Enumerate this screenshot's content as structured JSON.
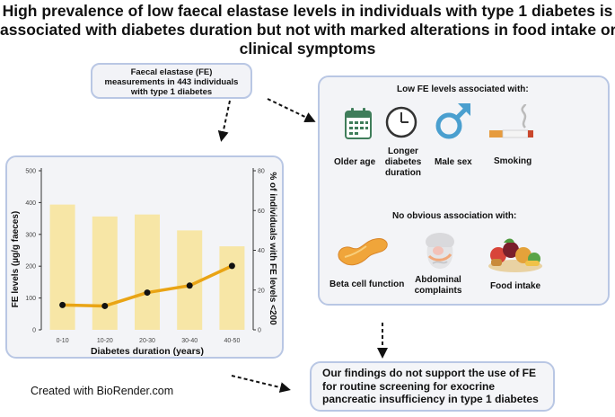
{
  "title": {
    "line1": "High prevalence of low faecal elastase levels in individuals with type 1 diabetes is",
    "line2": "associated with diabetes duration but not with marked alterations in food intake or",
    "line3": "clinical symptoms"
  },
  "fe_box": {
    "line1": "Faecal elastase (FE)",
    "line2": "measurements in 443 individuals",
    "line3": "with type 1 diabetes"
  },
  "assoc": {
    "header_low": "Low FE levels associated with:",
    "older_age": "Older age",
    "longer_duration": [
      "Longer",
      "diabetes",
      "duration"
    ],
    "male_sex": "Male sex",
    "smoking": "Smoking",
    "header_none": "No obvious association with:",
    "beta_cell": "Beta cell function",
    "abdominal": [
      "Abdominal",
      "complaints"
    ],
    "food_intake": "Food intake"
  },
  "conclusion": {
    "line1": "Our findings do not support the use of FE",
    "line2": "for routine screening for exocrine",
    "line3": "pancreatic insufficiency in type 1 diabetes"
  },
  "credit": "Created with BioRender.com",
  "colors": {
    "bar": "#f7e6a6",
    "line": "#e9a415",
    "box_border": "#b9c7e4"
  },
  "chart_data": {
    "type": "bar",
    "categories": [
      "0-10",
      "10-20",
      "20-30",
      "30-40",
      "40-50"
    ],
    "series": [
      {
        "type": "bar",
        "axis": "right",
        "values": [
          63,
          57,
          58,
          50,
          42
        ]
      },
      {
        "type": "line",
        "axis": "left",
        "values": [
          78,
          75,
          117,
          139,
          201
        ]
      }
    ],
    "xlabel": "Diabetes duration (years)",
    "ylabel_left": "FE levels (µg/g faeces)",
    "ylabel_right": "% of individuals with FE levels <200",
    "ylim_left": [
      0,
      500
    ],
    "ylim_right": [
      0,
      80
    ],
    "yticks_left": [
      "0",
      "100",
      "200",
      "300",
      "400",
      "500"
    ],
    "yticks_right": [
      "0",
      "20",
      "40",
      "60",
      "80"
    ]
  }
}
